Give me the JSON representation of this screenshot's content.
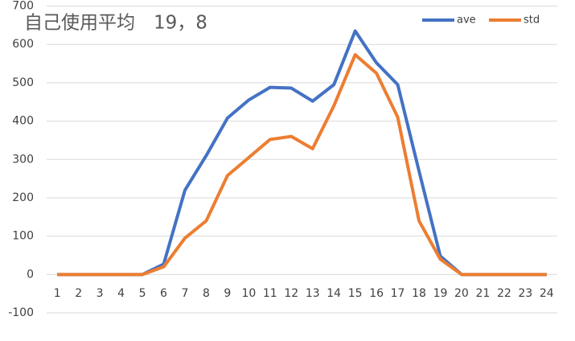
{
  "chart_data": {
    "type": "line",
    "title": "自己使用平均　19，8",
    "categories": [
      "1",
      "2",
      "3",
      "4",
      "5",
      "6",
      "7",
      "8",
      "9",
      "10",
      "11",
      "12",
      "13",
      "14",
      "15",
      "16",
      "17",
      "18",
      "19",
      "20",
      "21",
      "22",
      "23",
      "24"
    ],
    "series": [
      {
        "name": "ave",
        "color": "#4472c4",
        "values": [
          0,
          0,
          0,
          0,
          0,
          27,
          220,
          310,
          408,
          455,
          488,
          486,
          452,
          495,
          635,
          552,
          495,
          270,
          48,
          0,
          0,
          0,
          0,
          0
        ]
      },
      {
        "name": "std",
        "color": "#ed7d31",
        "values": [
          0,
          0,
          0,
          0,
          0,
          20,
          95,
          140,
          258,
          305,
          352,
          360,
          328,
          440,
          573,
          525,
          410,
          140,
          40,
          0,
          0,
          0,
          0,
          0
        ]
      }
    ],
    "ylim": [
      -100,
      700
    ],
    "yticks": [
      -100,
      0,
      100,
      200,
      300,
      400,
      500,
      600,
      700
    ],
    "grid": true,
    "legend": "top-right"
  }
}
